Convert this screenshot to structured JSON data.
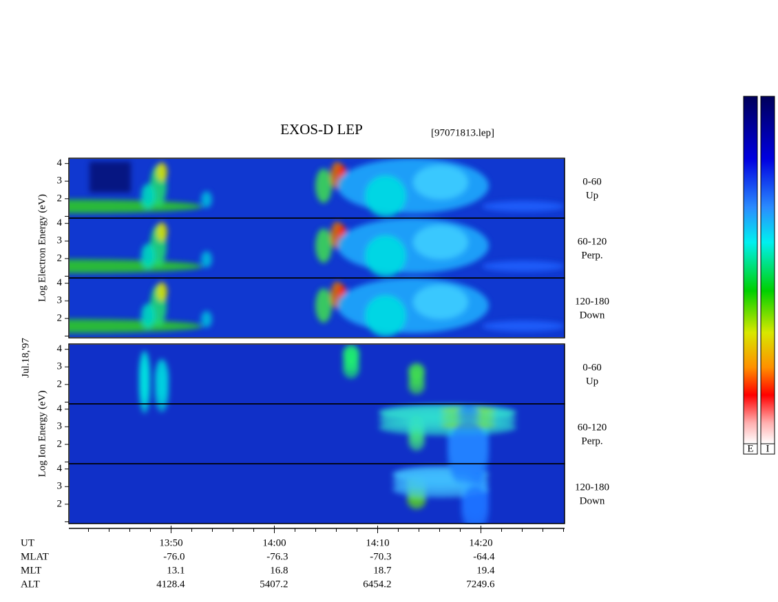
{
  "chart_data": {
    "type": "spectrogram",
    "title": "EXOS-D LEP",
    "file_label": "[97071813.lep]",
    "date_label": "Jul.18,'97",
    "groups": [
      {
        "ylabel": "Log Electron Energy (eV)",
        "panels": [
          {
            "angle": "0-60",
            "direction": "Up"
          },
          {
            "angle": "60-120",
            "direction": "Perp."
          },
          {
            "angle": "120-180",
            "direction": "Down"
          }
        ]
      },
      {
        "ylabel": "Log Ion Energy (eV)",
        "panels": [
          {
            "angle": "0-60",
            "direction": "Up"
          },
          {
            "angle": "60-120",
            "direction": "Perp."
          },
          {
            "angle": "120-180",
            "direction": "Down"
          }
        ]
      }
    ],
    "ylim": [
      0.9,
      4.3
    ],
    "yticks": [
      2,
      3,
      4
    ],
    "minor_yticks": [
      1
    ],
    "xlim": [
      40.1,
      88.1
    ],
    "xticks": [
      {
        "value": 50,
        "label": "13:50"
      },
      {
        "value": 60,
        "label": "14:00"
      },
      {
        "value": 70,
        "label": "14:10"
      },
      {
        "value": 80,
        "label": "14:20"
      }
    ],
    "minor_xticks": [
      42,
      44,
      46,
      48,
      52,
      54,
      56,
      58,
      62,
      64,
      66,
      68,
      72,
      74,
      76,
      78,
      82,
      84,
      86,
      88
    ],
    "ephemeris": {
      "labels": [
        "UT",
        "MLAT",
        "MLT",
        "ALT"
      ],
      "rows": [
        [
          "-76.0",
          "-76.3",
          "-70.3",
          "-64.4"
        ],
        [
          "13.1",
          "16.8",
          "18.7",
          "19.4"
        ],
        [
          "4128.4",
          "5407.2",
          "6454.2",
          "7249.6"
        ]
      ]
    },
    "colorbar_labels": [
      "E",
      "I"
    ]
  }
}
